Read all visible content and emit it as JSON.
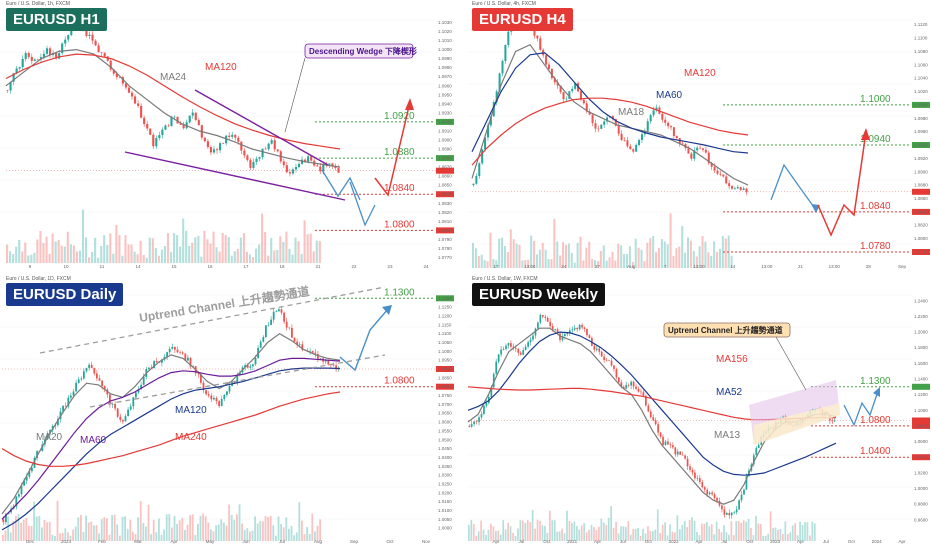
{
  "colors": {
    "bull": "#26a69a",
    "bear": "#ef5350",
    "ma_red": "#e53935",
    "ma_navy": "#1a3a8f",
    "ma_gray": "#7a7a7a",
    "ma_purple": "#6a1b9a",
    "target_green": "#43a047",
    "target_red": "#e53935",
    "arrow_red": "#e53935",
    "arrow_blue": "#4a90c8",
    "wedge": "#7b1fa2",
    "channel_gray": "#9e9e9e",
    "badge_h1": "#1b6f5c",
    "badge_h4": "#e53935",
    "badge_daily": "#1a3a8f",
    "badge_weekly": "#111111"
  },
  "chart_data": [
    {
      "id": "h1",
      "type": "candlestick",
      "title": "EURUSD H1",
      "header": "Euro / U.S. Dollar, 1h, FXCM",
      "ylim": [
        1.0765,
        1.1035
      ],
      "x_ticks": [
        "9",
        "10",
        "11",
        "14",
        "15",
        "16",
        "17",
        "18",
        "21",
        "22",
        "23",
        "24"
      ],
      "y_ticks": [
        "1.1030",
        "1.1020",
        "1.1010",
        "1.1000",
        "1.0990",
        "1.0980",
        "1.0970",
        "1.0960",
        "1.0950",
        "1.0940",
        "1.0930",
        "1.0920",
        "1.0910",
        "1.0900",
        "1.0890",
        "1.0880",
        "1.0870",
        "1.0860",
        "1.0850",
        "1.0840",
        "1.0830",
        "1.0820",
        "1.0810",
        "1.0800",
        "1.0790",
        "1.0780",
        "1.0770"
      ],
      "price_path": [
        1.0955,
        1.098,
        1.0995,
        1.0985,
        1.1,
        1.099,
        1.1015,
        1.103,
        1.102,
        1.1005,
        1.099,
        1.0975,
        1.096,
        1.0945,
        1.092,
        1.0895,
        1.091,
        1.0925,
        1.0915,
        1.093,
        1.0905,
        1.0885,
        1.0895,
        1.091,
        1.089,
        1.087,
        1.0885,
        1.09,
        1.088,
        1.086,
        1.0875,
        1.088,
        1.0868,
        1.0872,
        1.0866
      ],
      "ma_lines": [
        {
          "name": "MA24",
          "color": "#7a7a7a",
          "values": [
            1.096,
            1.0975,
            1.099,
            1.0998,
            1.1,
            1.0995,
            1.098,
            1.096,
            1.0945,
            1.093,
            1.0918,
            1.091,
            1.0905,
            1.0898,
            1.089,
            1.0885,
            1.088,
            1.0876,
            1.0873,
            1.087
          ]
        },
        {
          "name": "MA120",
          "color": "#e53935",
          "values": [
            1.0968,
            1.0978,
            1.0986,
            1.0992,
            1.0995,
            1.0994,
            1.099,
            1.0982,
            1.0972,
            1.096,
            1.0948,
            1.0937,
            1.0927,
            1.0918,
            1.0911,
            1.0905,
            1.09,
            1.0896,
            1.0893,
            1.089
          ]
        }
      ],
      "targets": [
        {
          "label": "1.0920",
          "value": 1.092,
          "color": "#43a047"
        },
        {
          "label": "1.0880",
          "value": 1.088,
          "color": "#43a047"
        },
        {
          "label": "1.0840",
          "value": 1.084,
          "color": "#e53935"
        },
        {
          "label": "1.0800",
          "value": 1.08,
          "color": "#e53935"
        }
      ],
      "current_price": 1.0866,
      "annotation": "Descending Wedge 下降楔形"
    },
    {
      "id": "h4",
      "type": "candlestick",
      "title": "EURUSD H4",
      "header": "Euro / U.S. Dollar, 4h, FXCM",
      "ylim": [
        1.0765,
        1.113
      ],
      "x_ticks": [
        "17",
        "13:00",
        "24",
        "27",
        "Aug",
        "7",
        "13:00",
        "14",
        "13:00",
        "21",
        "13:00",
        "28",
        "Sep"
      ],
      "y_ticks": [
        "1.1120",
        "1.1100",
        "1.1080",
        "1.1060",
        "1.1040",
        "1.1020",
        "1.1000",
        "1.0980",
        "1.0960",
        "1.0940",
        "1.0920",
        "1.0900",
        "1.0880",
        "1.0860",
        "1.0840",
        "1.0820",
        "1.0800",
        "1.0780"
      ],
      "price_path": [
        1.088,
        1.095,
        1.102,
        1.111,
        1.114,
        1.112,
        1.108,
        1.104,
        1.101,
        1.103,
        1.099,
        1.096,
        1.0985,
        1.095,
        1.093,
        1.096,
        1.0995,
        1.097,
        1.095,
        1.092,
        1.094,
        1.0905,
        1.089,
        1.0875,
        1.087
      ],
      "ma_lines": [
        {
          "name": "MA18",
          "color": "#7a7a7a",
          "values": [
            1.089,
            1.096,
            1.103,
            1.108,
            1.109,
            1.106,
            1.103,
            1.1005,
            1.099,
            1.098,
            1.097,
            1.0965,
            1.096,
            1.0955,
            1.0945,
            1.0935,
            1.092,
            1.0905,
            1.089,
            1.088
          ]
        },
        {
          "name": "MA60",
          "color": "#1a3a8f",
          "values": [
            1.093,
            1.0975,
            1.102,
            1.1055,
            1.1075,
            1.1078,
            1.106,
            1.1035,
            1.101,
            1.099,
            1.0975,
            1.0965,
            1.0958,
            1.0952,
            1.0948,
            1.0944,
            1.094,
            1.0935,
            1.093,
            1.0928
          ]
        },
        {
          "name": "MA120",
          "color": "#e53935",
          "values": [
            1.091,
            1.0935,
            1.0955,
            1.0972,
            1.0985,
            1.0995,
            1.1002,
            1.1008,
            1.101,
            1.101,
            1.1008,
            1.1004,
            1.0998,
            1.099,
            1.0982,
            1.0974,
            1.0968,
            1.0962,
            1.0958,
            1.0955
          ]
        }
      ],
      "targets": [
        {
          "label": "1.1000",
          "value": 1.1,
          "color": "#43a047"
        },
        {
          "label": "1.0940",
          "value": 1.094,
          "color": "#43a047"
        },
        {
          "label": "1.0840",
          "value": 1.084,
          "color": "#e53935"
        },
        {
          "label": "1.0780",
          "value": 1.078,
          "color": "#e53935"
        }
      ],
      "current_price": 1.087
    },
    {
      "id": "daily",
      "type": "candlestick",
      "title": "EURUSD Daily",
      "header": "Euro / U.S. Dollar, 1D, FXCM",
      "ylim": [
        0.995,
        1.133
      ],
      "x_ticks": [
        "Dec",
        "2023",
        "Feb",
        "Mar",
        "Apr",
        "May",
        "Jun",
        "Jul",
        "Aug",
        "Sep",
        "Oct",
        "Nov"
      ],
      "y_ticks": [
        "1.1300",
        "1.1250",
        "1.1200",
        "1.1150",
        "1.1100",
        "1.1050",
        "1.1000",
        "1.0950",
        "1.0900",
        "1.0850",
        "1.0800",
        "1.0750",
        "1.0700",
        "1.0650",
        "1.0600",
        "1.0550",
        "1.0500",
        "1.0450",
        "1.0400",
        "1.0350",
        "1.0300",
        "1.0250",
        "1.0200",
        "1.0150",
        "1.0100",
        "1.0050",
        "1.0000"
      ],
      "price_path": [
        1.005,
        1.015,
        1.03,
        1.045,
        1.055,
        1.068,
        1.08,
        1.092,
        1.085,
        1.07,
        1.06,
        1.075,
        1.09,
        1.095,
        1.102,
        1.098,
        1.09,
        1.075,
        1.07,
        1.08,
        1.09,
        1.095,
        1.115,
        1.125,
        1.11,
        1.1,
        1.098,
        1.094,
        1.09
      ],
      "ma_lines": [
        {
          "name": "MA20",
          "color": "#7a7a7a",
          "values": [
            1.008,
            1.017,
            1.029,
            1.042,
            1.054,
            1.065,
            1.075,
            1.082,
            1.081,
            1.076,
            1.074,
            1.08,
            1.088,
            1.094,
            1.098,
            1.096,
            1.09,
            1.083,
            1.079,
            1.083,
            1.09,
            1.097,
            1.105,
            1.11,
            1.106,
            1.101,
            1.098,
            1.096,
            1.095
          ]
        },
        {
          "name": "MA60",
          "color": "#6a1b9a",
          "values": [
            1.005,
            1.012,
            1.019,
            1.027,
            1.036,
            1.045,
            1.054,
            1.062,
            1.068,
            1.072,
            1.074,
            1.077,
            1.081,
            1.085,
            1.088,
            1.089,
            1.0885,
            1.087,
            1.086,
            1.086,
            1.087,
            1.089,
            1.092,
            1.095,
            1.096,
            1.096,
            1.0955,
            1.095,
            1.0945
          ]
        },
        {
          "name": "MA120",
          "color": "#1a3a8f",
          "values": [
            0.999,
            1.003,
            1.008,
            1.014,
            1.021,
            1.028,
            1.035,
            1.042,
            1.048,
            1.053,
            1.057,
            1.061,
            1.065,
            1.069,
            1.073,
            1.076,
            1.078,
            1.079,
            1.08,
            1.0815,
            1.083,
            1.085,
            1.087,
            1.089,
            1.09,
            1.0905,
            1.0905,
            1.0905,
            1.0903
          ]
        },
        {
          "name": "MA240",
          "color": "#e53935",
          "values": [
            1.045,
            1.041,
            1.038,
            1.036,
            1.035,
            1.035,
            1.0355,
            1.0365,
            1.038,
            1.0395,
            1.041,
            1.043,
            1.045,
            1.047,
            1.0495,
            1.052,
            1.054,
            1.056,
            1.058,
            1.06,
            1.062,
            1.064,
            1.0665,
            1.069,
            1.071,
            1.073,
            1.0745,
            1.076,
            1.077
          ]
        }
      ],
      "targets": [
        {
          "label": "1.1300",
          "value": 1.13,
          "color": "#43a047"
        },
        {
          "label": "1.0800",
          "value": 1.08,
          "color": "#e53935"
        }
      ],
      "current_price": 1.09,
      "annotation": "Uptrend Channel 上升趨勢通道"
    },
    {
      "id": "weekly",
      "type": "candlestick",
      "title": "EURUSD Weekly",
      "header": "Euro / U.S. Dollar, 1W, FXCM",
      "ylim": [
        0.938,
        1.25
      ],
      "x_ticks": [
        "Apr",
        "Jul",
        "Oct",
        "2021",
        "Apr",
        "Jul",
        "Oct",
        "2022",
        "Apr",
        "Jul",
        "Oct",
        "2023",
        "Apr",
        "Jul",
        "Oct",
        "2024",
        "Apr"
      ],
      "y_ticks": [
        "1.2400",
        "1.2200",
        "1.2000",
        "1.1800",
        "1.1600",
        "1.1400",
        "1.1200",
        "1.1000",
        "1.0800",
        "1.0600",
        "1.0400",
        "1.0200",
        "1.0000",
        "0.9800",
        "0.9600"
      ],
      "price_path": [
        1.08,
        1.09,
        1.12,
        1.18,
        1.185,
        1.17,
        1.19,
        1.22,
        1.21,
        1.19,
        1.2,
        1.21,
        1.185,
        1.17,
        1.16,
        1.13,
        1.135,
        1.12,
        1.09,
        1.06,
        1.05,
        1.04,
        1.02,
        1.0,
        0.99,
        0.97,
        0.965,
        1.0,
        1.04,
        1.07,
        1.08,
        1.09,
        1.075,
        1.09,
        1.1,
        1.095,
        1.087
      ],
      "ma_lines": [
        {
          "name": "MA13",
          "color": "#7a7a7a",
          "values": [
            1.085,
            1.095,
            1.12,
            1.15,
            1.175,
            1.185,
            1.195,
            1.205,
            1.205,
            1.195,
            1.19,
            1.185,
            1.175,
            1.16,
            1.145,
            1.13,
            1.12,
            1.1,
            1.075,
            1.055,
            1.04,
            1.025,
            1.01,
            0.995,
            0.985,
            0.98,
            0.985,
            1.005,
            1.035,
            1.06,
            1.075,
            1.085,
            1.085,
            1.09,
            1.095,
            1.095,
            1.092
          ]
        },
        {
          "name": "MA52",
          "color": "#1a3a8f",
          "values": [
            1.1,
            1.105,
            1.112,
            1.125,
            1.142,
            1.16,
            1.175,
            1.188,
            1.196,
            1.2,
            1.199,
            1.195,
            1.188,
            1.18,
            1.17,
            1.158,
            1.145,
            1.13,
            1.115,
            1.1,
            1.085,
            1.07,
            1.055,
            1.04,
            1.03,
            1.022,
            1.018,
            1.017,
            1.018,
            1.02,
            1.025,
            1.03,
            1.035,
            1.04,
            1.046,
            1.052,
            1.058
          ]
        },
        {
          "name": "MA156",
          "color": "#e53935",
          "values": [
            1.13,
            1.129,
            1.128,
            1.127,
            1.1265,
            1.126,
            1.126,
            1.1265,
            1.127,
            1.1275,
            1.128,
            1.128,
            1.127,
            1.1255,
            1.124,
            1.122,
            1.12,
            1.118,
            1.115,
            1.112,
            1.109,
            1.106,
            1.103,
            1.1,
            1.097,
            1.094,
            1.091,
            1.089,
            1.088,
            1.088,
            1.0885,
            1.089,
            1.0895,
            1.09,
            1.0905,
            1.0905,
            1.0905
          ]
        }
      ],
      "targets": [
        {
          "label": "1.1300",
          "value": 1.13,
          "color": "#43a047"
        },
        {
          "label": "1.0800",
          "value": 1.08,
          "color": "#e53935"
        },
        {
          "label": "1.0400",
          "value": 1.04,
          "color": "#e53935"
        }
      ],
      "current_price": 1.087,
      "annotation": "Uptrend Channel 上升趨勢通道"
    }
  ]
}
